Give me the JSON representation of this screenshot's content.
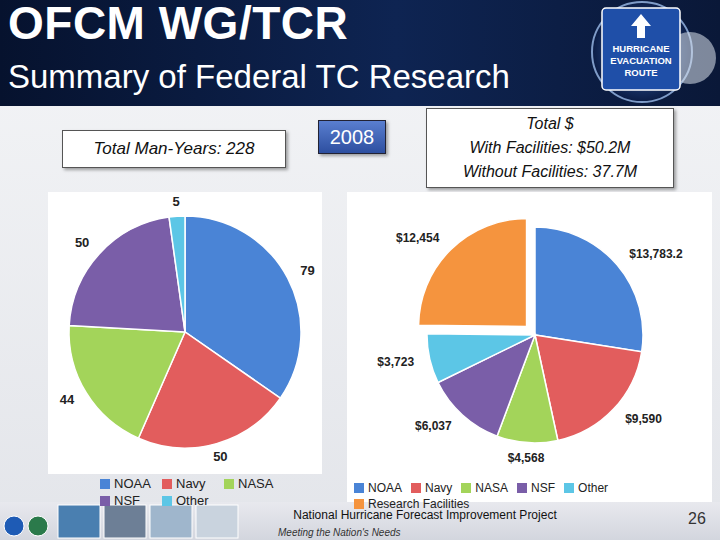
{
  "header": {
    "title": "OFCM WG/TCR",
    "subtitle": "Summary of Federal TC Research",
    "logo_text": [
      "HURRICANE",
      "EVACUATION",
      "ROUTE"
    ]
  },
  "boxes": {
    "man_years": "Total Man-Years: 228",
    "year": "2008",
    "totals": [
      "Total $",
      "With Facilities: $50.2M",
      "Without Facilities: 37.7M"
    ]
  },
  "chart_data": [
    {
      "type": "pie",
      "categories": [
        "NOAA",
        "Navy",
        "NASA",
        "NSF",
        "Other"
      ],
      "values": [
        79,
        50,
        44,
        50,
        5
      ],
      "colors": [
        "#4a84d6",
        "#e25d5d",
        "#a3d45a",
        "#7a5ea8",
        "#5cc6e6"
      ],
      "data_labels": true,
      "legend": "bottom"
    },
    {
      "type": "pie",
      "categories": [
        "NOAA",
        "Navy",
        "NASA",
        "NSF",
        "Other",
        "Research Facilities"
      ],
      "values": [
        13783.2,
        9590,
        4568,
        6037,
        3723,
        12454
      ],
      "value_labels": [
        "$13,783.2",
        "$9,590",
        "$4,568",
        "$6,037",
        "$3,723",
        "$12,454"
      ],
      "colors": [
        "#4a84d6",
        "#e25d5d",
        "#a3d45a",
        "#7a5ea8",
        "#5cc6e6",
        "#f5943e"
      ],
      "data_labels": true,
      "legend": "bottom"
    }
  ],
  "footer": {
    "project": "National Hurricane Forecast Improvement Project",
    "tagline": "Meeting the Nation's Needs",
    "page": "26"
  }
}
